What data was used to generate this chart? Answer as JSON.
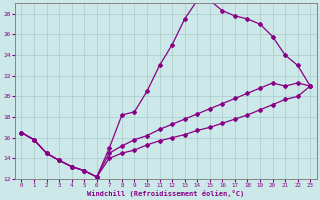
{
  "xlabel": "Windchill (Refroidissement éolien,°C)",
  "bg_color": "#cce8e8",
  "grid_color": "#aacccc",
  "line_color": "#880088",
  "line1_x": [
    0,
    1,
    2,
    3,
    4,
    5,
    6,
    7,
    8,
    9,
    10,
    11,
    12,
    13,
    14,
    15,
    16,
    17,
    18,
    19,
    20,
    21,
    22,
    23
  ],
  "line1_y": [
    16.5,
    15.8,
    14.5,
    13.8,
    13.2,
    12.8,
    12.2,
    15.0,
    18.2,
    18.5,
    20.5,
    23.0,
    25.0,
    27.5,
    29.3,
    29.3,
    28.3,
    27.8,
    27.5,
    27.0,
    25.8,
    24.0,
    23.0,
    21.0
  ],
  "line2_x": [
    0,
    1,
    2,
    3,
    4,
    5,
    6,
    7,
    8,
    9,
    10,
    11,
    12,
    13,
    14,
    15,
    16,
    17,
    18,
    19,
    20,
    21,
    22,
    23
  ],
  "line2_y": [
    16.5,
    15.8,
    14.5,
    13.8,
    13.2,
    12.8,
    12.2,
    14.5,
    15.2,
    15.8,
    16.2,
    16.8,
    17.3,
    17.8,
    18.3,
    18.8,
    19.3,
    19.8,
    20.3,
    20.8,
    21.3,
    21.0,
    21.3,
    21.0
  ],
  "line3_x": [
    0,
    1,
    2,
    3,
    4,
    5,
    6,
    7,
    8,
    9,
    10,
    11,
    12,
    13,
    14,
    15,
    16,
    17,
    18,
    19,
    20,
    21,
    22,
    23
  ],
  "line3_y": [
    16.5,
    15.8,
    14.5,
    13.8,
    13.2,
    12.8,
    12.2,
    14.0,
    14.5,
    14.8,
    15.3,
    15.7,
    16.0,
    16.3,
    16.7,
    17.0,
    17.4,
    17.8,
    18.2,
    18.7,
    19.2,
    19.7,
    20.0,
    21.0
  ],
  "xlim": [
    -0.5,
    23.5
  ],
  "ylim": [
    12,
    29
  ],
  "yticks": [
    12,
    14,
    16,
    18,
    20,
    22,
    24,
    26,
    28
  ],
  "xticks": [
    0,
    1,
    2,
    3,
    4,
    5,
    6,
    7,
    8,
    9,
    10,
    11,
    12,
    13,
    14,
    15,
    16,
    17,
    18,
    19,
    20,
    21,
    22,
    23
  ]
}
